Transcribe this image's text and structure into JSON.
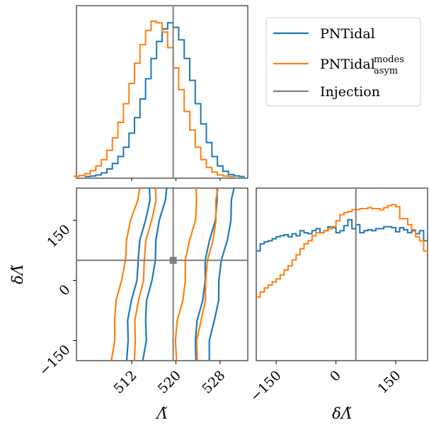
{
  "chart_data": [
    {
      "panel": "marginal-lambda-tilde",
      "type": "histogram",
      "xlim": [
        502,
        533
      ],
      "series": [
        {
          "name": "PNTidal",
          "color": "#1f77b4",
          "x": [
            504,
            505,
            506,
            507,
            508,
            509,
            510,
            511,
            512,
            513,
            514,
            515,
            516,
            517,
            518,
            519,
            520,
            521,
            522,
            523,
            524,
            525,
            526,
            527,
            528,
            529,
            530,
            531,
            532
          ],
          "values": [
            0.002,
            0.005,
            0.012,
            0.025,
            0.05,
            0.085,
            0.13,
            0.19,
            0.28,
            0.38,
            0.5,
            0.63,
            0.76,
            0.87,
            0.95,
            0.99,
            0.96,
            0.88,
            0.76,
            0.62,
            0.47,
            0.34,
            0.22,
            0.13,
            0.07,
            0.035,
            0.015,
            0.006,
            0.002
          ]
        },
        {
          "name": "PNTidal",
          "sub": "asym",
          "sup": "modes",
          "color": "#ff7f0e",
          "x": [
            502,
            503,
            504,
            505,
            506,
            507,
            508,
            509,
            510,
            511,
            512,
            513,
            514,
            515,
            516,
            517,
            518,
            519,
            520,
            521,
            522,
            523,
            524,
            525,
            526,
            527,
            528,
            529,
            530
          ],
          "values": [
            0.003,
            0.008,
            0.02,
            0.04,
            0.07,
            0.11,
            0.17,
            0.25,
            0.35,
            0.47,
            0.6,
            0.73,
            0.85,
            0.94,
            1.0,
            0.99,
            0.93,
            0.83,
            0.7,
            0.56,
            0.42,
            0.3,
            0.19,
            0.11,
            0.06,
            0.03,
            0.012,
            0.005,
            0.002
          ]
        }
      ],
      "injection_x": 519.5
    },
    {
      "panel": "joint-lambda-tilde-delta-lambda-tilde",
      "type": "contour",
      "xlim": [
        502,
        533
      ],
      "ylim": [
        -200,
        230
      ],
      "xticks": [
        512,
        520,
        528
      ],
      "xtick_labels": [
        "512",
        "520",
        "528"
      ],
      "yticks": [
        150,
        0,
        -150
      ],
      "ytick_labels": [
        "150",
        "0",
        "−150"
      ],
      "xlabel": "Λ̃",
      "ylabel": "δΛ̃",
      "series": [
        {
          "name": "PNTidal",
          "color": "#1f77b4",
          "contours": [
            {
              "y": [
                -200,
                -150,
                -100,
                -50,
                0,
                50,
                100,
                150,
                200,
                230
              ],
              "x": [
                514.0,
                514.3,
                514.6,
                515.0,
                515.5,
                516.0,
                516.6,
                517.2,
                517.8,
                518.2
              ]
            },
            {
              "y": [
                -200,
                -150,
                -100,
                -50,
                0,
                50,
                100,
                150,
                200,
                230
              ],
              "x": [
                510.8,
                511.2,
                511.6,
                512.0,
                512.6,
                513.2,
                513.8,
                514.4,
                515.0,
                515.4
              ]
            },
            {
              "y": [
                -200,
                -150,
                -100,
                -50,
                0,
                50,
                100,
                150,
                200,
                230
              ],
              "x": [
                523.3,
                523.7,
                524.1,
                524.6,
                525.1,
                525.6,
                526.2,
                526.8,
                527.4,
                527.8
              ]
            },
            {
              "y": [
                -200,
                -150,
                -100,
                -50,
                0,
                50,
                100,
                150,
                200,
                230
              ],
              "x": [
                526.0,
                526.4,
                526.9,
                527.4,
                527.9,
                528.5,
                529.1,
                529.7,
                530.3,
                530.7
              ]
            }
          ]
        },
        {
          "name": "PNTidal",
          "sub": "asym",
          "sup": "modes",
          "color": "#ff7f0e",
          "contours": [
            {
              "y": [
                -200,
                -150,
                -100,
                -50,
                0,
                50,
                100,
                150,
                200,
                230
              ],
              "x": [
                508.3,
                508.6,
                509.0,
                509.5,
                510.0,
                510.6,
                511.3,
                512.0,
                512.8,
                513.3
              ]
            },
            {
              "y": [
                -200,
                -150,
                -100,
                -50,
                0,
                50,
                100,
                150,
                200,
                230
              ],
              "x": [
                512.2,
                512.5,
                512.9,
                513.3,
                513.8,
                514.3,
                514.9,
                515.5,
                516.1,
                516.5
              ]
            },
            {
              "y": [
                -200,
                -150,
                -100,
                -50,
                0,
                50,
                100,
                150,
                200,
                230
              ],
              "x": [
                519.8,
                520.1,
                520.5,
                521.0,
                521.5,
                522.0,
                522.6,
                523.2,
                523.7,
                524.0
              ]
            },
            {
              "y": [
                -200,
                -150,
                -100,
                -50,
                0,
                50,
                100,
                150,
                200,
                230
              ],
              "x": [
                523.8,
                524.1,
                524.5,
                525.0,
                525.5,
                526.0,
                526.5,
                527.0,
                527.5,
                527.8
              ]
            }
          ]
        }
      ],
      "injection": {
        "x": 519.5,
        "y": 50
      }
    },
    {
      "panel": "marginal-delta-lambda-tilde",
      "type": "histogram",
      "xlim": [
        -200,
        230
      ],
      "xticks": [
        -150,
        0,
        150
      ],
      "xtick_labels": [
        "−150",
        "0",
        "150"
      ],
      "xlabel": "δΛ̃",
      "series": [
        {
          "name": "PNTidal",
          "color": "#1f77b4",
          "x": [
            -195,
            -185,
            -175,
            -165,
            -155,
            -145,
            -135,
            -125,
            -115,
            -105,
            -95,
            -85,
            -75,
            -65,
            -55,
            -45,
            -35,
            -25,
            -15,
            -5,
            5,
            15,
            25,
            35,
            45,
            55,
            65,
            75,
            85,
            95,
            105,
            115,
            125,
            135,
            145,
            155,
            165,
            175,
            185,
            195,
            205,
            215,
            225
          ],
          "values": [
            0.46,
            0.53,
            0.55,
            0.56,
            0.58,
            0.6,
            0.61,
            0.62,
            0.6,
            0.63,
            0.61,
            0.66,
            0.64,
            0.63,
            0.66,
            0.68,
            0.64,
            0.66,
            0.7,
            0.69,
            0.64,
            0.66,
            0.71,
            0.77,
            0.68,
            0.72,
            0.64,
            0.66,
            0.67,
            0.66,
            0.68,
            0.68,
            0.7,
            0.7,
            0.69,
            0.65,
            0.69,
            0.67,
            0.64,
            0.66,
            0.63,
            0.66,
            0.56
          ]
        },
        {
          "name": "PNTidal",
          "sub": "asym",
          "sup": "modes",
          "color": "#ff7f0e",
          "x": [
            -195,
            -185,
            -175,
            -165,
            -155,
            -145,
            -135,
            -125,
            -115,
            -105,
            -95,
            -85,
            -75,
            -65,
            -55,
            -45,
            -35,
            -25,
            -15,
            -5,
            5,
            15,
            25,
            35,
            45,
            55,
            65,
            75,
            85,
            95,
            105,
            115,
            125,
            135,
            145,
            155,
            165,
            175,
            185,
            195,
            205,
            215,
            225
          ],
          "values": [
            0.0,
            0.05,
            0.09,
            0.12,
            0.15,
            0.18,
            0.22,
            0.27,
            0.31,
            0.37,
            0.42,
            0.48,
            0.53,
            0.56,
            0.61,
            0.64,
            0.64,
            0.66,
            0.68,
            0.7,
            0.76,
            0.82,
            0.84,
            0.85,
            0.87,
            0.87,
            0.88,
            0.88,
            0.89,
            0.88,
            0.88,
            0.87,
            0.89,
            0.91,
            0.92,
            0.9,
            0.78,
            0.78,
            0.72,
            0.67,
            0.6,
            0.56,
            0.46
          ]
        }
      ],
      "injection_x": 50
    }
  ],
  "legend": {
    "placement": "top-right",
    "entries": [
      {
        "label": "PNTidal",
        "color": "#1f77b4"
      },
      {
        "label": "PNTidal",
        "sub": "asym",
        "sup": "modes",
        "color": "#ff7f0e"
      },
      {
        "label": "Injection",
        "color": "#808080"
      }
    ]
  }
}
